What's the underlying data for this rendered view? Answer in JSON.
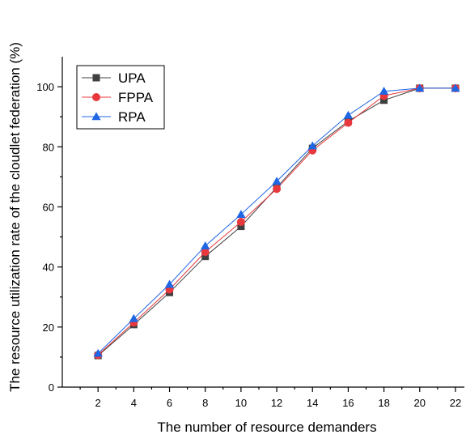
{
  "chart_data": {
    "type": "line",
    "title": "",
    "xlabel": "The number of resource demanders",
    "ylabel": "The resource utilization rate of the cloudlet federation (%)",
    "xlim": [
      0,
      22.5
    ],
    "ylim": [
      0,
      110
    ],
    "x_ticks": [
      2,
      4,
      6,
      8,
      10,
      12,
      14,
      16,
      18,
      20,
      22
    ],
    "y_ticks": [
      0,
      20,
      40,
      60,
      80,
      100
    ],
    "grid": false,
    "legend_position": "top-left",
    "series": [
      {
        "name": "UPA",
        "color": "#404040",
        "marker": "square",
        "x": [
          2,
          4,
          6,
          8,
          10,
          12,
          14,
          16,
          18,
          20,
          22
        ],
        "y": [
          10.5,
          20.8,
          31.5,
          43.5,
          53.5,
          66.5,
          79.5,
          88.5,
          95.5,
          99.5,
          99.5
        ]
      },
      {
        "name": "FPPA",
        "color": "#e8383d",
        "marker": "circle",
        "x": [
          2,
          4,
          6,
          8,
          10,
          12,
          14,
          16,
          18,
          20,
          22
        ],
        "y": [
          10.7,
          21.5,
          32.5,
          45.0,
          55.0,
          66.0,
          78.8,
          88.0,
          97.0,
          99.5,
          99.5
        ]
      },
      {
        "name": "RPA",
        "color": "#1f66e5",
        "marker": "triangle",
        "x": [
          2,
          4,
          6,
          8,
          10,
          12,
          14,
          16,
          18,
          20,
          22
        ],
        "y": [
          11.2,
          22.8,
          34.2,
          47.0,
          57.5,
          68.5,
          80.3,
          90.5,
          98.5,
          99.5,
          99.5
        ]
      }
    ]
  }
}
